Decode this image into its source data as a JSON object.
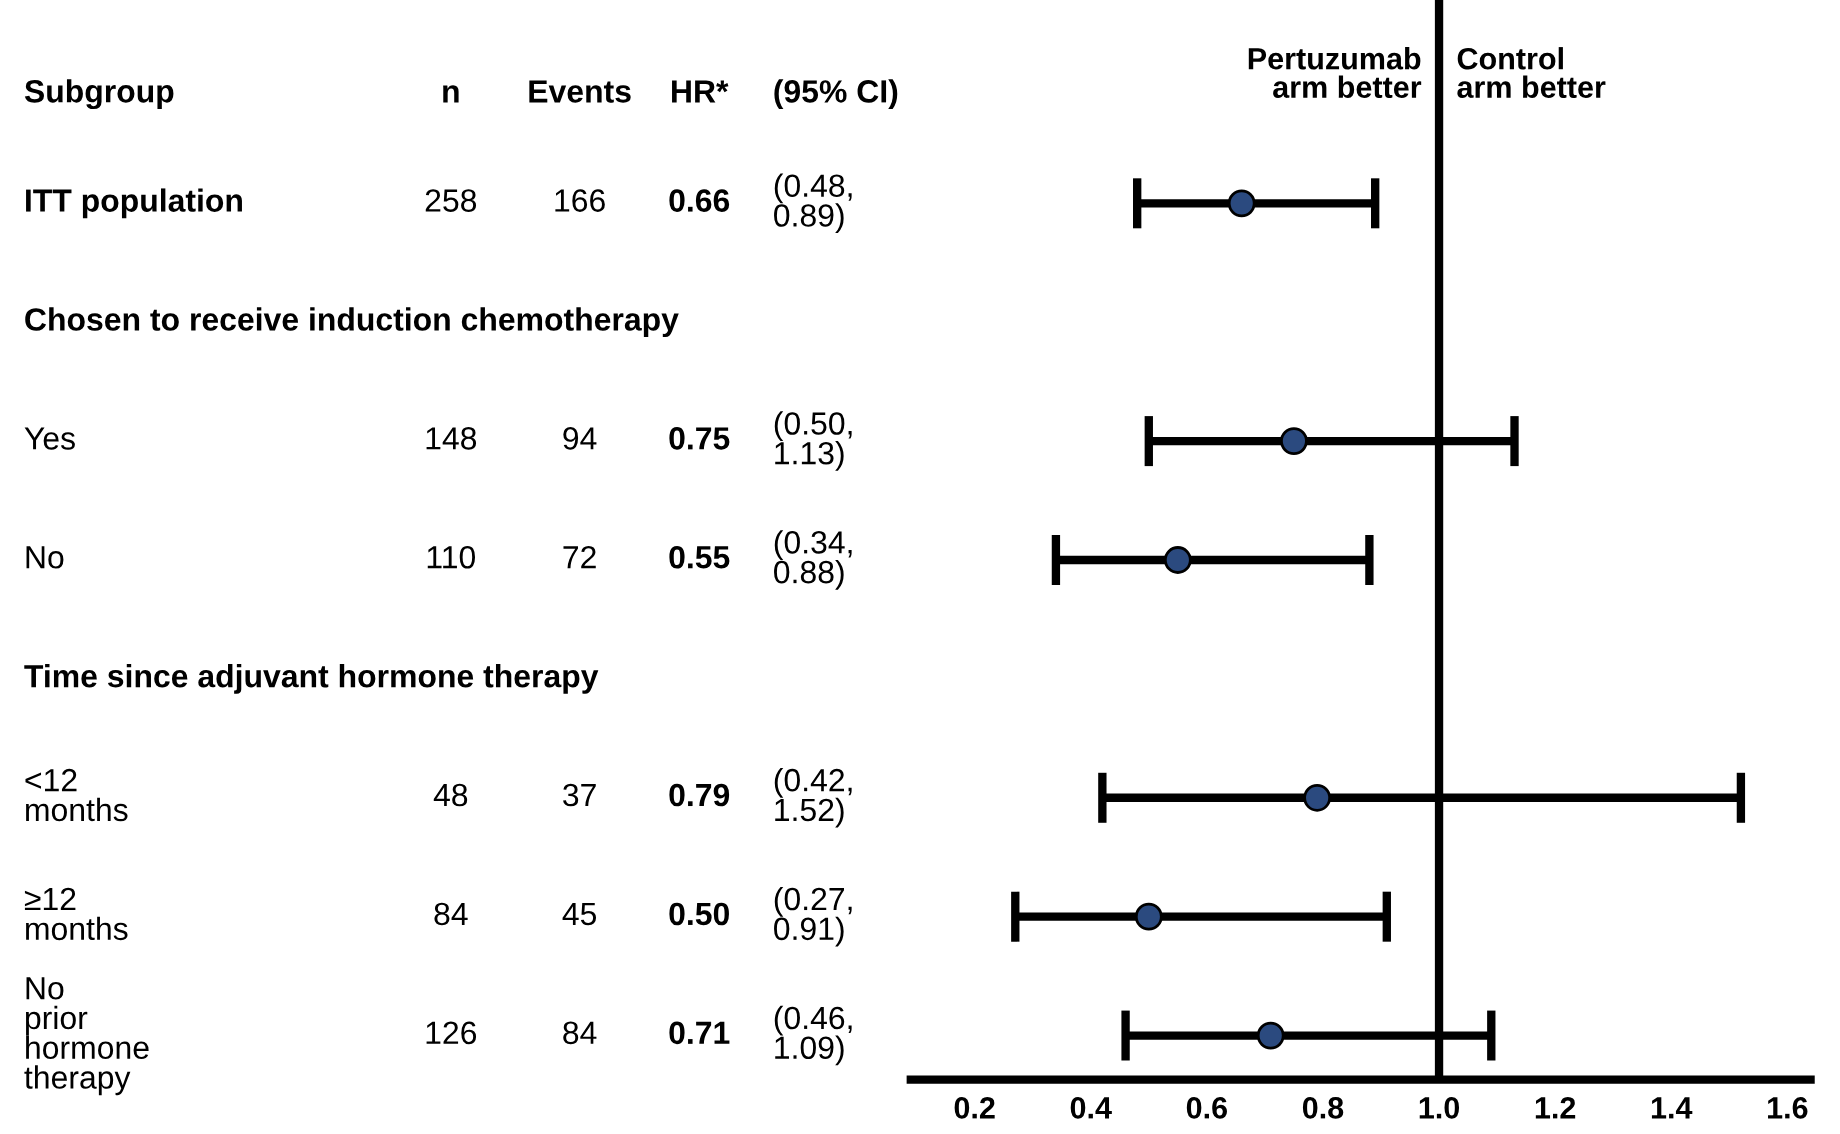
{
  "chart_data": {
    "type": "scatter",
    "categories": [
      "ITT population",
      "Chosen to receive induction chemotherapy",
      "Yes",
      "No",
      "Time since adjuvant hormone therapy",
      "<12 months",
      "≥12 months",
      "No prior hormone therapy"
    ],
    "orientation": "horizontal",
    "series": [
      {
        "color": "#2b4a7f",
        "values": [
          0.66,
          null,
          0.75,
          0.55,
          null,
          0.79,
          0.5,
          0.71
        ],
        "errors": [
          [
            0.48,
            0.89
          ],
          null,
          [
            0.5,
            1.13
          ],
          [
            0.34,
            0.88
          ],
          null,
          [
            0.42,
            1.52
          ],
          [
            0.27,
            0.91
          ],
          [
            0.46,
            1.09
          ]
        ],
        "value_labels": [
          "0.66",
          null,
          "0.75",
          "0.55",
          null,
          "0.79",
          "0.50",
          "0.71"
        ]
      }
    ],
    "marker": "circle",
    "xlim": [
      0.09,
      1.64
    ],
    "xticks": [
      {
        "value": 0.2,
        "label": "0.2"
      },
      {
        "value": 0.4,
        "label": "0.4"
      },
      {
        "value": 0.6,
        "label": "0.6"
      },
      {
        "value": 0.8,
        "label": "0.8"
      },
      {
        "value": 1.0,
        "label": "1.0"
      },
      {
        "value": 1.2,
        "label": "1.2"
      },
      {
        "value": 1.4,
        "label": "1.4"
      },
      {
        "value": 1.6,
        "label": "1.6"
      }
    ],
    "ref_lines": [
      {
        "axis": "x",
        "value": 1.0,
        "color": "#000000"
      }
    ],
    "annotations": [
      "Subgroup",
      "n",
      "Events",
      "HR*",
      "(95% CI)",
      "Pertuzumab arm better",
      "Control arm better",
      "258",
      "166",
      "(0.48, 0.89)",
      "148",
      "94",
      "(0.50, 1.13)",
      "110",
      "72",
      "(0.34, 0.88)",
      "48",
      "37",
      "(0.42, 1.52)",
      "84",
      "45",
      "(0.27, 0.91)",
      "126",
      "84",
      "(0.46, 1.09)"
    ]
  }
}
